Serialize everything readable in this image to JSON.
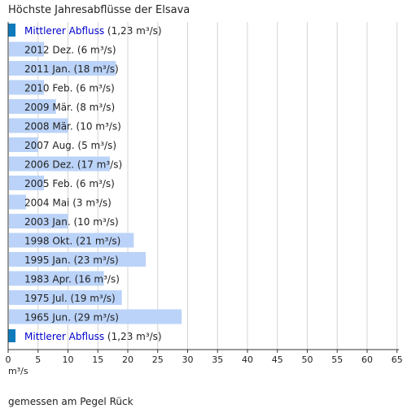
{
  "chart_data": {
    "type": "bar",
    "orientation": "horizontal",
    "title": "Höchste Jahresabflüsse der Elsava",
    "xlabel": "m³/s",
    "xlim": [
      0,
      66
    ],
    "xticks": [
      0,
      5,
      10,
      15,
      20,
      25,
      30,
      35,
      40,
      45,
      50,
      55,
      60,
      65
    ],
    "grid": true,
    "bar_color": "#bbd3f8",
    "mean_marker_color": "#0f7bbd",
    "link_color": "#0000cc",
    "mean": {
      "value": 1.23,
      "link_text": "Mittlerer Abfluss",
      "value_text": "(1,23 m³/s)"
    },
    "categories": [
      "2012 Dez. (6 m³/s)",
      "2011 Jan. (18 m³/s)",
      "2010 Feb. (6 m³/s)",
      "2009 Mär. (8 m³/s)",
      "2008 Mär. (10 m³/s)",
      "2007 Aug. (5 m³/s)",
      "2006 Dez. (17 m³/s)",
      "2005 Feb. (6 m³/s)",
      "2004 Mai (3 m³/s)",
      "2003 Jan. (10 m³/s)",
      "1998 Okt. (21 m³/s)",
      "1995 Jan. (23 m³/s)",
      "1983 Apr. (16 m³/s)",
      "1975 Jul. (19 m³/s)",
      "1965 Jun. (29 m³/s)"
    ],
    "values": [
      6,
      18,
      6,
      8,
      10,
      5,
      17,
      6,
      3,
      10,
      21,
      23,
      16,
      19,
      29
    ]
  },
  "footnote": "gemessen am Pegel Rück"
}
